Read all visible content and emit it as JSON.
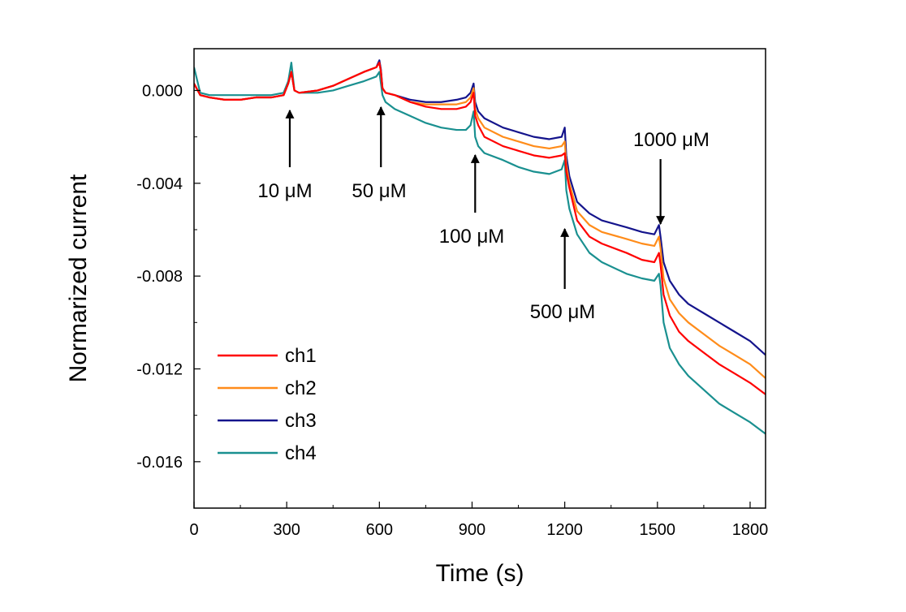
{
  "chart_data": {
    "type": "line",
    "title": "",
    "xlabel": "Time (s)",
    "ylabel": "Normarized current",
    "xlim": [
      0,
      1850
    ],
    "ylim": [
      -0.018,
      0.0018
    ],
    "x_ticks": [
      0,
      300,
      600,
      900,
      1200,
      1500,
      1800
    ],
    "x_tick_labels": [
      "0",
      "300",
      "600",
      "900",
      "1200",
      "1500",
      "1800"
    ],
    "y_ticks": [
      0.0,
      -0.004,
      -0.008,
      -0.012,
      -0.016
    ],
    "y_tick_labels": [
      "0.000",
      "-0.004",
      "-0.008",
      "-0.012",
      "-0.016"
    ],
    "grid": false,
    "legend_position": "bottom-left",
    "x": [
      0,
      20,
      50,
      100,
      150,
      200,
      250,
      290,
      305,
      315,
      325,
      340,
      400,
      450,
      500,
      550,
      590,
      600,
      605,
      610,
      620,
      650,
      700,
      750,
      800,
      850,
      880,
      895,
      905,
      910,
      920,
      940,
      1000,
      1050,
      1100,
      1150,
      1190,
      1200,
      1205,
      1215,
      1240,
      1280,
      1320,
      1400,
      1450,
      1490,
      1505,
      1510,
      1520,
      1540,
      1570,
      1600,
      1650,
      1700,
      1750,
      1800,
      1850
    ],
    "series": [
      {
        "name": "ch1",
        "color": "#ff0000",
        "values": [
          0.0003,
          -0.0002,
          -0.0003,
          -0.0004,
          -0.0004,
          -0.0003,
          -0.0003,
          -0.0002,
          0.0003,
          0.0008,
          0.0,
          -0.0001,
          0.0,
          0.0002,
          0.0005,
          0.0008,
          0.001,
          0.0012,
          0.0008,
          0.0001,
          -0.0001,
          -0.0002,
          -0.0005,
          -0.0007,
          -0.0008,
          -0.0008,
          -0.0007,
          -0.0005,
          -0.0001,
          -0.0011,
          -0.0015,
          -0.002,
          -0.0024,
          -0.0026,
          -0.0028,
          -0.0029,
          -0.0028,
          -0.0027,
          -0.0035,
          -0.0042,
          -0.0056,
          -0.0063,
          -0.0066,
          -0.007,
          -0.0073,
          -0.0074,
          -0.007,
          -0.0075,
          -0.0088,
          -0.0097,
          -0.0104,
          -0.0108,
          -0.0113,
          -0.0118,
          -0.0122,
          -0.0126,
          -0.0131
        ]
      },
      {
        "name": "ch2",
        "color": "#ff8c1a",
        "values": [
          0.0003,
          -0.0002,
          -0.0003,
          -0.0004,
          -0.0004,
          -0.0003,
          -0.0003,
          -0.0002,
          0.0003,
          0.0008,
          0.0,
          -0.0001,
          0.0,
          0.0002,
          0.0005,
          0.0008,
          0.001,
          0.0012,
          0.0008,
          0.0001,
          -0.0001,
          -0.0002,
          -0.0005,
          -0.0006,
          -0.0006,
          -0.0006,
          -0.0005,
          -0.0003,
          0.0001,
          -0.0008,
          -0.0012,
          -0.0016,
          -0.002,
          -0.0022,
          -0.0024,
          -0.0025,
          -0.0024,
          -0.0022,
          -0.0032,
          -0.004,
          -0.0052,
          -0.0058,
          -0.0061,
          -0.0064,
          -0.0066,
          -0.0067,
          -0.0063,
          -0.0068,
          -0.0081,
          -0.009,
          -0.0096,
          -0.01,
          -0.0105,
          -0.011,
          -0.0114,
          -0.0118,
          -0.0124
        ]
      },
      {
        "name": "ch3",
        "color": "#14148c",
        "values": [
          0.0003,
          -0.0002,
          -0.0003,
          -0.0004,
          -0.0004,
          -0.0003,
          -0.0003,
          -0.0002,
          0.0003,
          0.0008,
          0.0,
          -0.0001,
          0.0,
          0.0002,
          0.0005,
          0.0008,
          0.001,
          0.0013,
          0.0009,
          0.0001,
          -0.0001,
          -0.0002,
          -0.0004,
          -0.0005,
          -0.0005,
          -0.0004,
          -0.0003,
          -0.0001,
          0.0003,
          -0.0005,
          -0.0009,
          -0.0012,
          -0.0016,
          -0.0018,
          -0.002,
          -0.0021,
          -0.002,
          -0.0016,
          -0.0028,
          -0.0037,
          -0.0048,
          -0.0053,
          -0.0056,
          -0.0059,
          -0.0061,
          -0.0062,
          -0.0058,
          -0.0063,
          -0.0074,
          -0.0082,
          -0.0088,
          -0.0092,
          -0.0096,
          -0.01,
          -0.0104,
          -0.0108,
          -0.0114
        ]
      },
      {
        "name": "ch4",
        "color": "#1a9090",
        "values": [
          0.001,
          -0.0001,
          -0.0002,
          -0.0002,
          -0.0002,
          -0.0002,
          -0.0002,
          -0.0001,
          0.0004,
          0.0012,
          0.0,
          -0.0001,
          -0.0001,
          0.0,
          0.0002,
          0.0004,
          0.0006,
          0.0008,
          0.0003,
          -0.0002,
          -0.0005,
          -0.0008,
          -0.0011,
          -0.0014,
          -0.0016,
          -0.0017,
          -0.0017,
          -0.0015,
          -0.0009,
          -0.002,
          -0.0024,
          -0.0027,
          -0.003,
          -0.0033,
          -0.0035,
          -0.0036,
          -0.0034,
          -0.003,
          -0.0043,
          -0.0051,
          -0.0062,
          -0.007,
          -0.0074,
          -0.0079,
          -0.0081,
          -0.0082,
          -0.0079,
          -0.0084,
          -0.01,
          -0.0111,
          -0.0118,
          -0.0123,
          -0.0129,
          -0.0135,
          -0.0139,
          -0.0143,
          -0.0148
        ]
      }
    ],
    "annotations": [
      {
        "text": "10 μM",
        "arrow_x": 310,
        "direction": "up"
      },
      {
        "text": "50 μM",
        "arrow_x": 605,
        "direction": "up"
      },
      {
        "text": "100 μM",
        "arrow_x": 910,
        "direction": "up"
      },
      {
        "text": "500 μM",
        "arrow_x": 1200,
        "direction": "up"
      },
      {
        "text": "1000 μM",
        "arrow_x": 1510,
        "direction": "down"
      }
    ]
  }
}
